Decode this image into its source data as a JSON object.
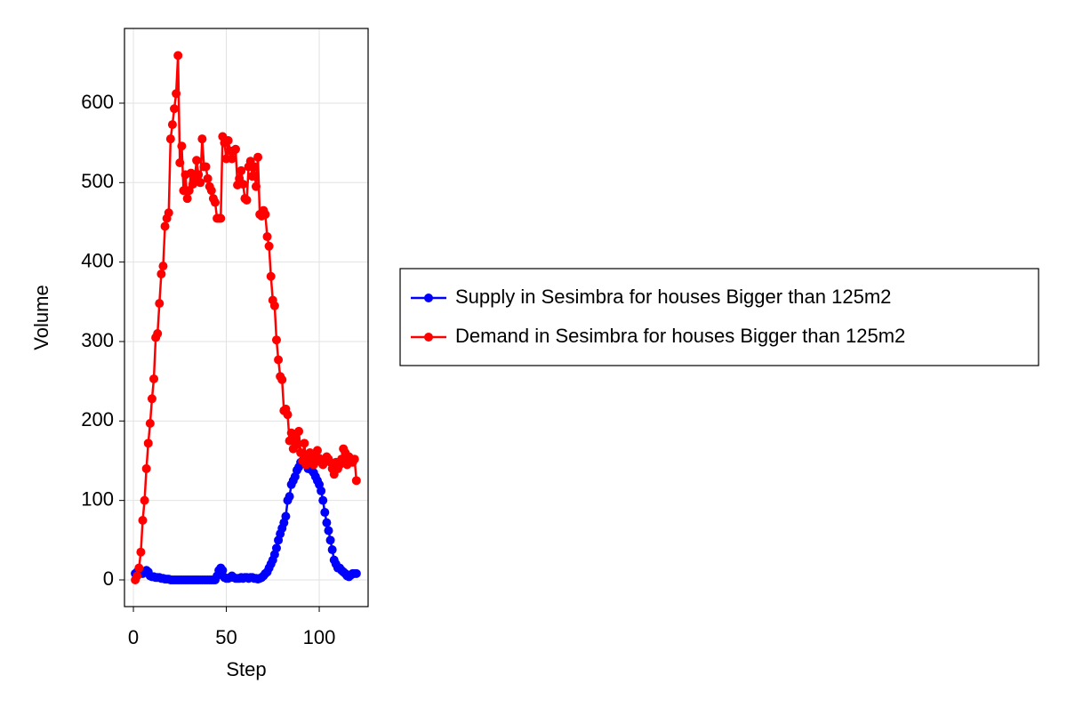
{
  "chart_data": {
    "type": "line",
    "x_label": "Step",
    "y_label": "Volume",
    "x": [
      1,
      2,
      3,
      4,
      5,
      6,
      7,
      8,
      9,
      10,
      11,
      12,
      13,
      14,
      15,
      16,
      17,
      18,
      19,
      20,
      21,
      22,
      23,
      24,
      25,
      26,
      27,
      28,
      29,
      30,
      31,
      32,
      33,
      34,
      35,
      36,
      37,
      38,
      39,
      40,
      41,
      42,
      43,
      44,
      45,
      46,
      47,
      48,
      49,
      50,
      51,
      52,
      53,
      54,
      55,
      56,
      57,
      58,
      59,
      60,
      61,
      62,
      63,
      64,
      65,
      66,
      67,
      68,
      69,
      70,
      71,
      72,
      73,
      74,
      75,
      76,
      77,
      78,
      79,
      80,
      81,
      82,
      83,
      84,
      85,
      86,
      87,
      88,
      89,
      90,
      91,
      92,
      93,
      94,
      95,
      96,
      97,
      98,
      99,
      100,
      101,
      102,
      103,
      104,
      105,
      106,
      107,
      108,
      109,
      110,
      111,
      112,
      113,
      114,
      115,
      116,
      117,
      118,
      119,
      120
    ],
    "series": [
      {
        "name": "Supply in Sesimbra for houses Bigger than 125m2",
        "color": "#0000ff",
        "values": [
          8,
          10,
          12,
          10,
          8,
          10,
          12,
          10,
          5,
          4,
          4,
          3,
          3,
          3,
          2,
          2,
          1,
          1,
          1,
          0,
          0,
          0,
          0,
          0,
          0,
          0,
          0,
          0,
          0,
          0,
          0,
          0,
          0,
          0,
          0,
          0,
          0,
          0,
          0,
          0,
          0,
          0,
          0,
          0,
          5,
          12,
          15,
          12,
          3,
          2,
          2,
          3,
          5,
          3,
          2,
          2,
          2,
          3,
          2,
          3,
          3,
          2,
          3,
          3,
          2,
          2,
          1,
          2,
          3,
          5,
          8,
          10,
          15,
          20,
          25,
          32,
          40,
          50,
          58,
          65,
          72,
          80,
          100,
          105,
          120,
          125,
          130,
          138,
          142,
          148,
          150,
          148,
          145,
          140,
          145,
          138,
          135,
          130,
          125,
          120,
          112,
          100,
          85,
          72,
          62,
          50,
          38,
          25,
          20,
          15,
          15,
          12,
          10,
          8,
          5,
          4,
          6,
          8,
          8,
          8
        ]
      },
      {
        "name": "Demand in Sesimbra for houses Bigger than 125m2",
        "color": "#ff0000",
        "values": [
          0,
          5,
          15,
          35,
          75,
          100,
          140,
          172,
          197,
          228,
          253,
          305,
          310,
          348,
          385,
          395,
          445,
          455,
          462,
          555,
          573,
          593,
          612,
          660,
          525,
          546,
          490,
          510,
          480,
          490,
          512,
          498,
          505,
          528,
          510,
          500,
          555,
          520,
          520,
          505,
          495,
          490,
          480,
          475,
          455,
          455,
          455,
          558,
          550,
          530,
          553,
          540,
          530,
          540,
          542,
          497,
          505,
          515,
          498,
          480,
          478,
          520,
          527,
          508,
          520,
          495,
          532,
          460,
          458,
          465,
          460,
          432,
          420,
          382,
          352,
          345,
          302,
          277,
          256,
          252,
          213,
          215,
          208,
          175,
          185,
          165,
          180,
          170,
          187,
          160,
          150,
          172,
          145,
          158,
          160,
          150,
          145,
          155,
          163,
          153,
          148,
          145,
          150,
          155,
          152,
          148,
          140,
          133,
          148,
          140,
          145,
          152,
          165,
          160,
          145,
          155,
          150,
          148,
          152,
          125
        ]
      }
    ],
    "xlim": [
      -4.8,
      126.3
    ],
    "ylim": [
      -33.6,
      694
    ],
    "xticks": [
      0,
      50,
      100
    ],
    "yticks": [
      0,
      100,
      200,
      300,
      400,
      500,
      600
    ],
    "grid": true,
    "legend": "right"
  }
}
